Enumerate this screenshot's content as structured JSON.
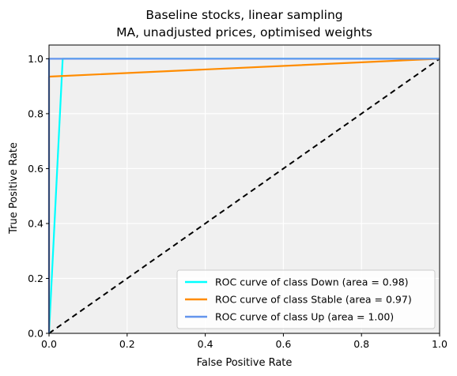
{
  "chart_data": {
    "type": "line",
    "title": "Baseline stocks, linear sampling",
    "subtitle": "MA, unadjusted prices, optimised weights",
    "xlabel": "False Positive Rate",
    "ylabel": "True Positive Rate",
    "xlim": [
      0.0,
      1.0
    ],
    "ylim": [
      0.0,
      1.05
    ],
    "xticks": [
      "0.0",
      "0.2",
      "0.4",
      "0.6",
      "0.8",
      "1.0"
    ],
    "yticks": [
      "0.0",
      "0.2",
      "0.4",
      "0.6",
      "0.8",
      "1.0"
    ],
    "grid": true,
    "background_color": "#f0f0f0",
    "legend_position": "lower-right",
    "series": [
      {
        "name": "ROC curve of class Down (area = 0.98)",
        "color": "#00ffff",
        "x": [
          0.0,
          0.035,
          1.0
        ],
        "y": [
          0.0,
          1.0,
          1.0
        ]
      },
      {
        "name": "ROC curve of class Stable (area = 0.97)",
        "color": "#ff8c00",
        "x": [
          0.0,
          0.0,
          1.0
        ],
        "y": [
          0.0,
          0.935,
          1.0
        ]
      },
      {
        "name": "ROC curve of class Up (area = 1.00)",
        "color": "#6495ed",
        "x": [
          0.0,
          0.0,
          1.0
        ],
        "y": [
          0.0,
          1.0,
          1.0
        ]
      }
    ],
    "reference_line": {
      "style": "dashed",
      "color": "#000000",
      "x": [
        0.0,
        1.0
      ],
      "y": [
        0.0,
        1.0
      ]
    }
  }
}
